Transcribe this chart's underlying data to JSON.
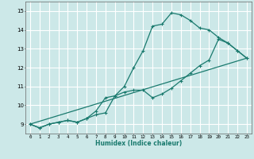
{
  "xlabel": "Humidex (Indice chaleur)",
  "bg_color": "#cce8e8",
  "grid_color": "#ffffff",
  "line_color": "#1a7a6e",
  "xlim": [
    -0.5,
    23.5
  ],
  "ylim": [
    8.5,
    15.5
  ],
  "yticks": [
    9,
    10,
    11,
    12,
    13,
    14,
    15
  ],
  "xticks": [
    0,
    1,
    2,
    3,
    4,
    5,
    6,
    7,
    8,
    9,
    10,
    11,
    12,
    13,
    14,
    15,
    16,
    17,
    18,
    19,
    20,
    21,
    22,
    23
  ],
  "series1_x": [
    0,
    1,
    2,
    3,
    4,
    5,
    6,
    7,
    8,
    9,
    10,
    11,
    12,
    13,
    14,
    15,
    16,
    17,
    18,
    19,
    20,
    21,
    22,
    23
  ],
  "series1_y": [
    9.0,
    8.8,
    9.0,
    9.1,
    9.2,
    9.1,
    9.3,
    9.5,
    9.6,
    10.5,
    11.0,
    12.0,
    12.9,
    14.2,
    14.3,
    14.9,
    14.8,
    14.5,
    14.1,
    14.0,
    13.6,
    13.3,
    12.9,
    12.5
  ],
  "series2_x": [
    0,
    1,
    2,
    3,
    4,
    5,
    6,
    7,
    8,
    9,
    10,
    11,
    12,
    13,
    14,
    15,
    16,
    17,
    18,
    19,
    20,
    21,
    22,
    23
  ],
  "series2_y": [
    9.0,
    8.8,
    9.0,
    9.1,
    9.2,
    9.1,
    9.3,
    9.7,
    10.4,
    10.5,
    10.7,
    10.8,
    10.8,
    10.4,
    10.6,
    10.9,
    11.3,
    11.7,
    12.1,
    12.4,
    13.5,
    13.3,
    12.9,
    12.5
  ],
  "series3_x": [
    0,
    23
  ],
  "series3_y": [
    9.0,
    12.5
  ]
}
